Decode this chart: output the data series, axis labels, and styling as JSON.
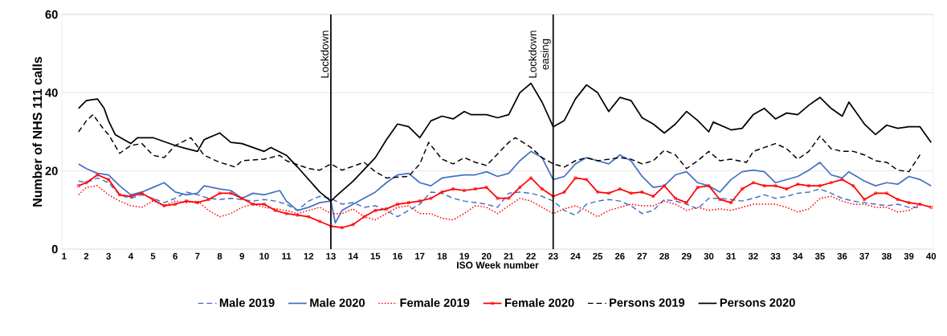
{
  "chart_data": {
    "type": "line",
    "xlabel": "ISO Week number",
    "ylabel": "Number of NHS 111 calls",
    "xlim": [
      0.9,
      40.1
    ],
    "xticks": [
      1,
      2,
      3,
      4,
      5,
      6,
      7,
      8,
      9,
      10,
      11,
      12,
      13,
      14,
      15,
      16,
      17,
      18,
      19,
      20,
      21,
      22,
      23,
      24,
      25,
      26,
      27,
      28,
      29,
      30,
      31,
      32,
      33,
      34,
      35,
      36,
      37,
      38,
      39,
      40
    ],
    "ylim": [
      0,
      60
    ],
    "yticks": [
      0,
      20,
      40,
      60
    ],
    "grid": "y",
    "legend": "bottom",
    "ref_lines": [
      {
        "axis": "x",
        "value": 13,
        "label": "Lockdown",
        "color": "#000000"
      },
      {
        "axis": "x",
        "value": 23,
        "label": "Lockdown easing",
        "color": "#000000"
      }
    ],
    "series": [
      {
        "name": "Male 2019",
        "color": "#4472c4",
        "line_style": "dashed",
        "x": [
          1.65,
          2,
          2.5,
          3,
          3.5,
          4,
          4.5,
          5,
          5.5,
          6,
          6.5,
          7,
          7.5,
          8,
          8.5,
          9,
          9.5,
          10,
          10.5,
          11,
          11.5,
          12,
          12.5,
          13,
          13.5,
          14,
          14.5,
          15,
          15.5,
          16,
          16.5,
          17,
          17.5,
          18,
          18.5,
          19,
          19.5,
          20,
          20.5,
          21,
          21.5,
          22,
          22.5,
          23,
          23.5,
          24,
          24.5,
          25,
          25.5,
          26,
          26.5,
          27,
          27.5,
          28,
          28.5,
          29,
          29.5,
          30,
          30.5,
          31,
          31.5,
          32,
          32.5,
          33,
          33.5,
          34,
          34.5,
          35,
          35.5,
          36,
          36.5,
          37,
          37.5,
          38,
          38.5,
          39,
          39.5
        ],
        "values": [
          17.4,
          17,
          18.2,
          17,
          13.9,
          13,
          13.9,
          13,
          11.9,
          13,
          14.6,
          13.9,
          13,
          12.7,
          13,
          12.7,
          12.3,
          12.7,
          12.3,
          11.5,
          9.9,
          12.3,
          13.5,
          13,
          11.5,
          11.9,
          10.7,
          11.1,
          9.9,
          8.3,
          9.9,
          11.5,
          14.6,
          14.3,
          13,
          12.3,
          11.9,
          11.5,
          10.7,
          14.3,
          14.6,
          14.3,
          13.5,
          12.3,
          9.9,
          8.7,
          11.5,
          12.3,
          12.7,
          12.3,
          11.1,
          9.1,
          9.9,
          12.7,
          12.3,
          11.5,
          10.3,
          13,
          13,
          12.7,
          12.3,
          13,
          13.9,
          13,
          13.5,
          14.3,
          14.6,
          15.4,
          14.3,
          13,
          12.3,
          11.9,
          11.5,
          11.1,
          11.5,
          10.7,
          10.7
        ]
      },
      {
        "name": "Male 2020",
        "color": "#4472c4",
        "line_style": "solid",
        "x": [
          1.65,
          2,
          2.5,
          3,
          3.5,
          4,
          4.5,
          5,
          5.5,
          6,
          6.5,
          7,
          7.3,
          8,
          8.5,
          9,
          9.5,
          10,
          10.7,
          11,
          11.5,
          12,
          12.5,
          13,
          13.2,
          13.5,
          14,
          15,
          15.5,
          16,
          16.5,
          17,
          17.5,
          18,
          18.5,
          19,
          19.5,
          20,
          20.5,
          21,
          21.5,
          22,
          22.5,
          23,
          23.5,
          24,
          24.5,
          25,
          25.5,
          26,
          26.5,
          27,
          27.5,
          28,
          28.5,
          29,
          29.5,
          30,
          30.5,
          31,
          31.5,
          32,
          32.5,
          33,
          33.5,
          34,
          34.5,
          35,
          35.5,
          36,
          36.3,
          37,
          37.5,
          38,
          38.5,
          39,
          39.5,
          40
        ],
        "values": [
          21.8,
          20.6,
          19.4,
          19,
          16.2,
          13.9,
          14.6,
          15.8,
          17,
          14.6,
          13.9,
          14.3,
          16.2,
          15.4,
          15,
          13,
          14.3,
          13.9,
          15,
          12.3,
          9.9,
          10.7,
          11.9,
          12.3,
          6.7,
          9.9,
          11.5,
          14.6,
          17,
          19,
          19.4,
          17,
          16.2,
          18.2,
          18.6,
          19,
          19,
          19.8,
          18.6,
          19.4,
          22.6,
          25,
          23.4,
          17.8,
          18.6,
          21.8,
          23.4,
          22.6,
          21.8,
          24.1,
          22.6,
          18.6,
          15.8,
          16.2,
          19,
          19.8,
          17,
          16.2,
          14.6,
          17.8,
          19.8,
          20.2,
          19.8,
          17,
          17.8,
          18.6,
          20.2,
          22.2,
          19,
          18.2,
          19.8,
          17.4,
          16.2,
          17,
          16.6,
          18.6,
          17.8,
          16.2
        ]
      },
      {
        "name": "Female 2019",
        "color": "#ff0000",
        "line_style": "dotted",
        "x": [
          1.65,
          2,
          2.5,
          3,
          3.5,
          4,
          4.5,
          5,
          5.5,
          6,
          6.5,
          7,
          7.5,
          8,
          8.5,
          9,
          9.5,
          10,
          10.5,
          11,
          11.5,
          12,
          12.5,
          13,
          13.5,
          14,
          14.5,
          15,
          15.5,
          16,
          16.5,
          17,
          17.5,
          18,
          18.5,
          19,
          19.5,
          20,
          20.5,
          21,
          21.5,
          22,
          22.5,
          23,
          23.5,
          24,
          24.5,
          25,
          25.5,
          26,
          26.5,
          27,
          27.5,
          28,
          28.5,
          29,
          29.5,
          30,
          30.5,
          31,
          31.5,
          32,
          32.5,
          33,
          33.5,
          34,
          34.5,
          35,
          35.5,
          36,
          36.5,
          37,
          37.5,
          38,
          38.5,
          39,
          39.5
        ],
        "values": [
          13.9,
          15.8,
          16.2,
          13.9,
          12.3,
          11.1,
          10.7,
          12.3,
          11.1,
          12.3,
          11.9,
          12.3,
          9.9,
          8.3,
          9.1,
          10.7,
          11.5,
          10.7,
          10.3,
          9.9,
          9.1,
          9.9,
          10.7,
          9.1,
          9.1,
          10.3,
          8.3,
          7.5,
          9.1,
          10.7,
          11.1,
          9.1,
          9.1,
          7.9,
          7.5,
          9.1,
          11.1,
          10.7,
          9.1,
          11.1,
          13,
          12.3,
          10.7,
          9.1,
          10.3,
          11.1,
          9.9,
          8.3,
          9.9,
          10.7,
          11.5,
          11.1,
          11.1,
          12.3,
          11.5,
          9.9,
          10.7,
          9.9,
          10.3,
          9.9,
          10.7,
          11.5,
          11.5,
          11.5,
          10.7,
          9.5,
          10.3,
          13,
          13.5,
          12.3,
          11.5,
          11.5,
          10.7,
          10.7,
          9.5,
          9.9,
          11.5
        ]
      },
      {
        "name": "Female 2020",
        "color": "#ff0000",
        "line_style": "solid",
        "marker": "square",
        "x": [
          1.65,
          2,
          2.5,
          3,
          3.5,
          4,
          4.5,
          5,
          5.5,
          6,
          6.5,
          7,
          7.5,
          8,
          8.5,
          9,
          9.5,
          10,
          10.5,
          11,
          11.5,
          12,
          12.5,
          13,
          13.5,
          14,
          14.5,
          15,
          15.5,
          16,
          16.5,
          17,
          17.5,
          18,
          18.5,
          19,
          19.5,
          20,
          20.5,
          21,
          21.5,
          22,
          22.5,
          23,
          23.5,
          24,
          24.5,
          25,
          25.5,
          26,
          26.5,
          27,
          27.5,
          28,
          28.5,
          29,
          29.5,
          30,
          30.5,
          31,
          31.5,
          32,
          32.5,
          33,
          33.5,
          34,
          34.5,
          35,
          35.5,
          36,
          36.5,
          37,
          37.5,
          38,
          38.5,
          39,
          39.5,
          40
        ],
        "values": [
          16.2,
          17,
          19,
          17.8,
          13.9,
          13.5,
          14.3,
          12.7,
          11.1,
          11.5,
          12.3,
          11.9,
          12.7,
          14.3,
          14.3,
          13,
          11.5,
          11.5,
          9.9,
          9.1,
          8.7,
          8.3,
          7.1,
          5.9,
          5.5,
          6.3,
          8.3,
          9.9,
          10.3,
          11.5,
          11.9,
          12.3,
          13,
          14.6,
          15.4,
          15,
          15.4,
          15.8,
          13,
          13,
          15.8,
          18.2,
          15.4,
          13.5,
          14.6,
          18.2,
          17.8,
          14.6,
          14.3,
          15.4,
          14.3,
          14.6,
          13.5,
          16.2,
          13,
          11.9,
          15.8,
          16.2,
          12.7,
          11.9,
          15.4,
          17,
          16.2,
          16.2,
          15.4,
          16.6,
          16.2,
          16.2,
          17,
          17.8,
          16.2,
          12.7,
          14.3,
          14.3,
          12.7,
          11.9,
          11.5,
          10.7
        ]
      },
      {
        "name": "Persons 2019",
        "color": "#000000",
        "line_style": "dashed",
        "x": [
          1.65,
          2,
          2.3,
          2.8,
          3,
          3.5,
          4,
          4.5,
          5,
          5.5,
          6,
          6.7,
          7.3,
          8,
          8.7,
          9,
          10,
          10.7,
          11,
          12,
          12.5,
          13,
          13.5,
          14.5,
          15,
          15.5,
          16.5,
          17,
          17.4,
          18,
          18.5,
          19,
          19.5,
          20,
          21,
          21.3,
          22,
          22.5,
          23,
          23.5,
          24,
          24.5,
          25,
          26,
          26.5,
          27,
          27.5,
          28,
          28.5,
          29,
          29.5,
          30,
          30.5,
          31,
          31.7,
          32,
          33,
          33.5,
          34,
          34.5,
          35,
          35.5,
          36,
          36.5,
          37,
          37.5,
          38,
          38.5,
          39,
          39.5
        ],
        "values": [
          30,
          32.8,
          34.4,
          30.5,
          29.3,
          24.5,
          26.5,
          27,
          24,
          23.4,
          26.5,
          28.5,
          24,
          22.2,
          21,
          22.6,
          23,
          24,
          22.6,
          20.6,
          20.2,
          21.8,
          20.2,
          22.2,
          19.8,
          18.2,
          18.6,
          21.8,
          27.3,
          23,
          21.8,
          23.4,
          22.2,
          21.4,
          27.3,
          28.5,
          26,
          23.4,
          21.8,
          21,
          22.6,
          23.4,
          22.6,
          23.4,
          23,
          21.8,
          22.6,
          25.3,
          24.1,
          20.6,
          22.6,
          25,
          22.6,
          23,
          22.2,
          25,
          27,
          25.7,
          23,
          25,
          28.9,
          25.7,
          25,
          25,
          24.1,
          22.6,
          22.2,
          20.2,
          19.8,
          24.1
        ]
      },
      {
        "name": "Persons 2020",
        "color": "#000000",
        "line_style": "solid",
        "x": [
          1.65,
          2,
          2.5,
          2.8,
          3,
          3.3,
          4,
          4.3,
          5,
          6,
          6.5,
          7,
          7.3,
          8,
          8.5,
          9,
          10,
          10.3,
          11,
          11.5,
          12,
          12.5,
          13,
          13.3,
          14,
          15,
          15.5,
          16,
          16.5,
          17,
          17.5,
          18,
          18.5,
          19,
          19.3,
          20,
          20.5,
          21,
          21.5,
          22,
          22.5,
          23,
          23.5,
          24,
          24.5,
          25,
          25.5,
          26,
          26.5,
          27,
          27.5,
          28,
          28.5,
          29,
          29.5,
          30,
          30.2,
          31,
          31.5,
          32,
          32.5,
          33,
          33.5,
          34,
          34.5,
          35,
          35.5,
          36,
          36.3,
          37,
          37.5,
          38,
          38.5,
          39,
          39.5,
          40
        ],
        "values": [
          36,
          38,
          38.4,
          36,
          32.8,
          29.3,
          27,
          28.5,
          28.5,
          26.5,
          25.7,
          25,
          28,
          29.7,
          27.3,
          27,
          25,
          26,
          24,
          21,
          17.8,
          14.6,
          12.3,
          13.9,
          17.4,
          23.4,
          28,
          32,
          31.3,
          28.5,
          32.8,
          34,
          33.3,
          35.2,
          34.4,
          34.4,
          33.6,
          34.4,
          40,
          42.4,
          37.6,
          31.3,
          32.9,
          38.4,
          42,
          40,
          35.2,
          38.8,
          38,
          33.6,
          32,
          29.7,
          32,
          35.2,
          32.9,
          30,
          32.5,
          30.5,
          30.9,
          34.4,
          36,
          33.3,
          34.8,
          34.4,
          36.8,
          38.8,
          36,
          34,
          37.6,
          32,
          29.3,
          31.7,
          30.9,
          31.3,
          31.3,
          27.3
        ]
      }
    ]
  }
}
